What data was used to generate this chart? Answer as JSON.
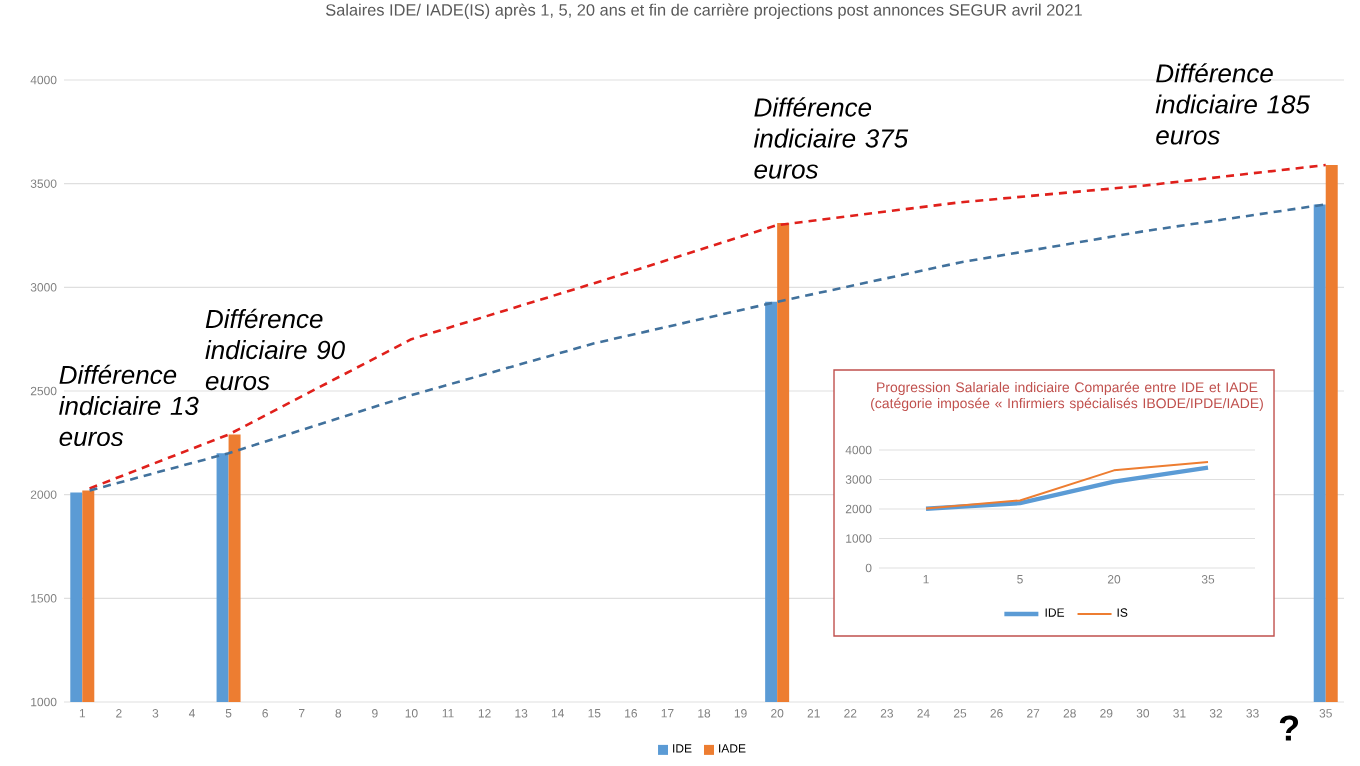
{
  "chart_data": [
    {
      "type": "bar",
      "title": "Salaires IDE/ IADE(IS) après 1, 5, 20 ans et fin de carrière projections post annonces SEGUR avril 2021",
      "x": [
        1,
        5,
        20,
        35
      ],
      "series": [
        {
          "name": "IDE",
          "color": "#5b9bd5",
          "values": [
            2010,
            2200,
            2930,
            3400
          ]
        },
        {
          "name": "IADE",
          "color": "#ed7d31",
          "values": [
            2020,
            2290,
            3310,
            3590
          ]
        },
        {
          "type": "line",
          "color": "#e0201b",
          "line_style": "dashed",
          "x": [
            1.2,
            5,
            10,
            15,
            20,
            25,
            30,
            35
          ],
          "values": [
            2030,
            2290,
            2750,
            3020,
            3300,
            3410,
            3490,
            3590
          ]
        },
        {
          "type": "line",
          "color": "#41719c",
          "line_style": "dashed",
          "x": [
            1.2,
            5,
            10,
            15,
            20,
            25,
            30,
            35
          ],
          "values": [
            2020,
            2200,
            2480,
            2730,
            2930,
            3120,
            3270,
            3400
          ]
        }
      ],
      "xlim": [
        0.5,
        35.5
      ],
      "xticks": [
        1,
        2,
        3,
        4,
        5,
        6,
        7,
        8,
        9,
        10,
        11,
        12,
        13,
        14,
        15,
        16,
        17,
        18,
        19,
        20,
        21,
        22,
        23,
        24,
        25,
        26,
        27,
        28,
        29,
        30,
        31,
        32,
        33,
        35
      ],
      "ylim": [
        1000,
        4000
      ],
      "yticks": [
        1000,
        1500,
        2000,
        2500,
        3000,
        3500,
        4000
      ],
      "grid": "y",
      "legend": "bottom",
      "annotations": [
        {
          "text": "*Différence indiciaire 13 euros*",
          "x": 1,
          "y": 2020
        },
        {
          "text": "*Différence indiciaire 90 euros*",
          "x": 5,
          "y": 2290
        },
        {
          "text": "*Différence indiciaire 375 euros*",
          "x": 20,
          "y": 3310
        },
        {
          "text": "*Différence indiciaire 185 euros*",
          "x": 35,
          "y": 3590
        },
        "?"
      ]
    },
    {
      "type": "line",
      "title": "Progression Salariale indiciaire Comparée entre IDE et IADE (catégorie imposée « Infirmiers spécialisés IBODE/IPDE/IADE)",
      "categories": [
        "1",
        "5",
        "20",
        "35"
      ],
      "series": [
        {
          "name": "IDE",
          "color": "#5b9bd5",
          "values": [
            2010,
            2200,
            2930,
            3400
          ]
        },
        {
          "name": "IS",
          "color": "#ed7d31",
          "values": [
            2020,
            2290,
            3310,
            3590
          ]
        }
      ],
      "ylim": [
        0,
        4000
      ],
      "yticks": [
        0,
        1000,
        2000,
        3000,
        4000
      ],
      "grid": "y",
      "legend": "bottom"
    }
  ]
}
